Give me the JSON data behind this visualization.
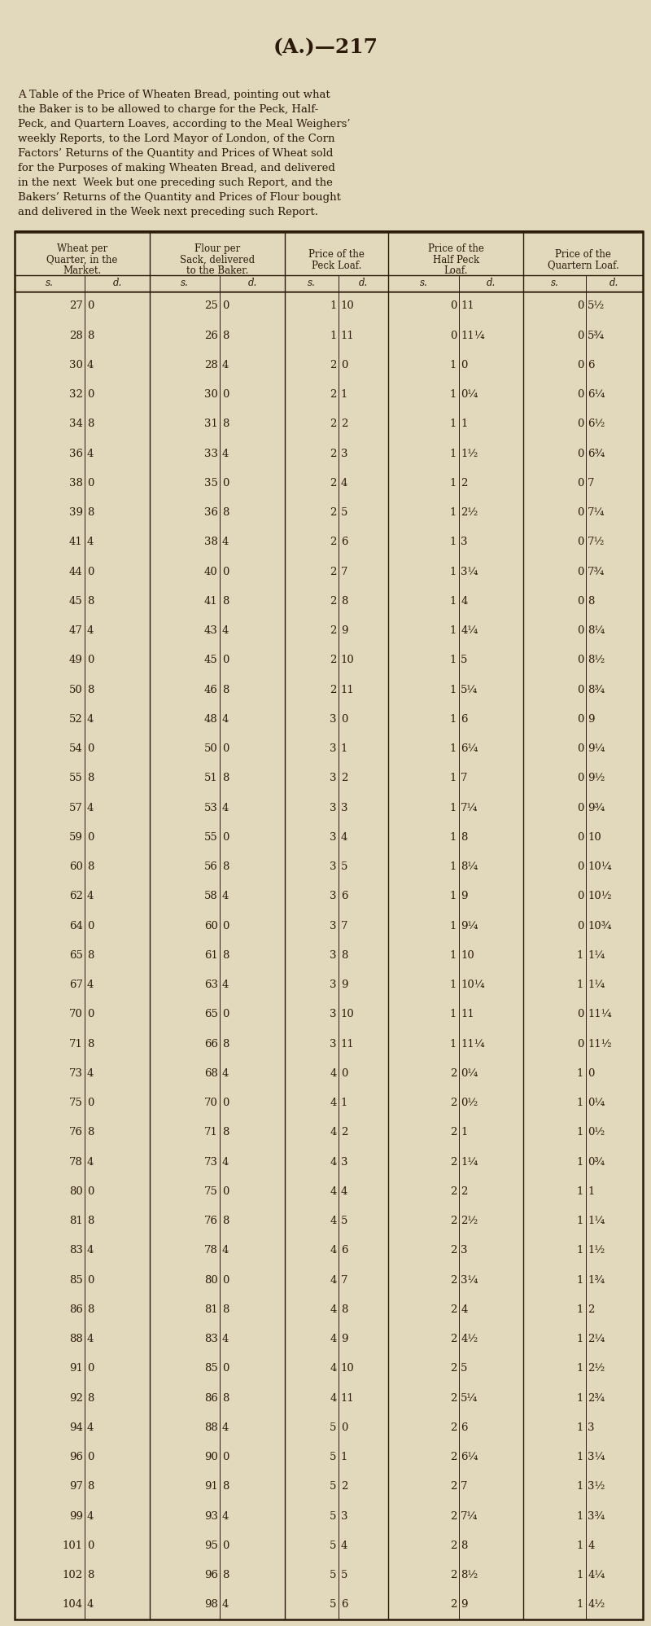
{
  "title": "(A.)—217",
  "subtitle_lines": [
    "A Table of the Price of Wheaten Bread, pointing out what",
    "the Baker is to be allowed to charge for the Peck, Half-",
    "Peck, and Quartern Loaves, according to the Meal Weighers’",
    "weekly Reports, to the Lord Mayor of London, of the Corn",
    "Factors’ Returns of the Quantity and Prices of Wheat sold",
    "for the Purposes of making Wheaten Bread, and delivered",
    "in the next  Week but one preceding such Report, and the",
    "Bakers’ Returns of the Quantity and Prices of Flour bought",
    "and delivered in the Week next preceding such Report."
  ],
  "col_headers": [
    [
      "Wheat per",
      "Quarter, in the",
      "Market."
    ],
    [
      "Flour per",
      "Sack, delivered",
      "to the Baker."
    ],
    [
      "Price of the",
      "Peck Loaf."
    ],
    [
      "Price of the",
      "Half Peck",
      "Loaf."
    ],
    [
      "Price of the",
      "Quartern Loaf."
    ]
  ],
  "rows": [
    [
      "27",
      "0",
      "25",
      "0",
      "1",
      "10",
      "0",
      "11",
      "0",
      "5½"
    ],
    [
      "28",
      "8",
      "26",
      "8",
      "1",
      "11",
      "0",
      "11¼",
      "0",
      "5¾"
    ],
    [
      "30",
      "4",
      "28",
      "4",
      "2",
      "0",
      "1",
      "0",
      "0",
      "6"
    ],
    [
      "32",
      "0",
      "30",
      "0",
      "2",
      "1",
      "1",
      "0¼",
      "0",
      "6¼"
    ],
    [
      "34",
      "8",
      "31",
      "8",
      "2",
      "2",
      "1",
      "1",
      "0",
      "6½"
    ],
    [
      "36",
      "4",
      "33",
      "4",
      "2",
      "3",
      "1",
      "1½",
      "0",
      "6¾"
    ],
    [
      "38",
      "0",
      "35",
      "0",
      "2",
      "4",
      "1",
      "2",
      "0",
      "7"
    ],
    [
      "39",
      "8",
      "36",
      "8",
      "2",
      "5",
      "1",
      "2½",
      "0",
      "7¼"
    ],
    [
      "41",
      "4",
      "38",
      "4",
      "2",
      "6",
      "1",
      "3",
      "0",
      "7½"
    ],
    [
      "44",
      "0",
      "40",
      "0",
      "2",
      "7",
      "1",
      "3¼",
      "0",
      "7¾"
    ],
    [
      "45",
      "8",
      "41",
      "8",
      "2",
      "8",
      "1",
      "4",
      "0",
      "8"
    ],
    [
      "47",
      "4",
      "43",
      "4",
      "2",
      "9",
      "1",
      "4¼",
      "0",
      "8¼"
    ],
    [
      "49",
      "0",
      "45",
      "0",
      "2",
      "10",
      "1",
      "5",
      "0",
      "8½"
    ],
    [
      "50",
      "8",
      "46",
      "8",
      "2",
      "11",
      "1",
      "5¼",
      "0",
      "8¾"
    ],
    [
      "52",
      "4",
      "48",
      "4",
      "3",
      "0",
      "1",
      "6",
      "0",
      "9"
    ],
    [
      "54",
      "0",
      "50",
      "0",
      "3",
      "1",
      "1",
      "6¼",
      "0",
      "9¼"
    ],
    [
      "55",
      "8",
      "51",
      "8",
      "3",
      "2",
      "1",
      "7",
      "0",
      "9½"
    ],
    [
      "57",
      "4",
      "53",
      "4",
      "3",
      "3",
      "1",
      "7¼",
      "0",
      "9¾"
    ],
    [
      "59",
      "0",
      "55",
      "0",
      "3",
      "4",
      "1",
      "8",
      "0",
      "10"
    ],
    [
      "60",
      "8",
      "56",
      "8",
      "3",
      "5",
      "1",
      "8¼",
      "0",
      "10¼"
    ],
    [
      "62",
      "4",
      "58",
      "4",
      "3",
      "6",
      "1",
      "9",
      "0",
      "10½"
    ],
    [
      "64",
      "0",
      "60",
      "0",
      "3",
      "7",
      "1",
      "9¼",
      "0",
      "10¾"
    ],
    [
      "65",
      "8",
      "61",
      "8",
      "3",
      "8",
      "1",
      "10",
      "1",
      "1¼"
    ],
    [
      "67",
      "4",
      "63",
      "4",
      "3",
      "9",
      "1",
      "10¼",
      "1",
      "1¼"
    ],
    [
      "70",
      "0",
      "65",
      "0",
      "3",
      "10",
      "1",
      "11",
      "0",
      "11¼"
    ],
    [
      "71",
      "8",
      "66",
      "8",
      "3",
      "11",
      "1",
      "11¼",
      "0",
      "11½"
    ],
    [
      "73",
      "4",
      "68",
      "4",
      "4",
      "0",
      "2",
      "0¼",
      "1",
      "0"
    ],
    [
      "75",
      "0",
      "70",
      "0",
      "4",
      "1",
      "2",
      "0½",
      "1",
      "0¼"
    ],
    [
      "76",
      "8",
      "71",
      "8",
      "4",
      "2",
      "2",
      "1",
      "1",
      "0½"
    ],
    [
      "78",
      "4",
      "73",
      "4",
      "4",
      "3",
      "2",
      "1¼",
      "1",
      "0¾"
    ],
    [
      "80",
      "0",
      "75",
      "0",
      "4",
      "4",
      "2",
      "2",
      "1",
      "1"
    ],
    [
      "81",
      "8",
      "76",
      "8",
      "4",
      "5",
      "2",
      "2½",
      "1",
      "1¼"
    ],
    [
      "83",
      "4",
      "78",
      "4",
      "4",
      "6",
      "2",
      "3",
      "1",
      "1½"
    ],
    [
      "85",
      "0",
      "80",
      "0",
      "4",
      "7",
      "2",
      "3¼",
      "1",
      "1¾"
    ],
    [
      "86",
      "8",
      "81",
      "8",
      "4",
      "8",
      "2",
      "4",
      "1",
      "2"
    ],
    [
      "88",
      "4",
      "83",
      "4",
      "4",
      "9",
      "2",
      "4½",
      "1",
      "2¼"
    ],
    [
      "91",
      "0",
      "85",
      "0",
      "4",
      "10",
      "2",
      "5",
      "1",
      "2½"
    ],
    [
      "92",
      "8",
      "86",
      "8",
      "4",
      "11",
      "2",
      "5¼",
      "1",
      "2¾"
    ],
    [
      "94",
      "4",
      "88",
      "4",
      "5",
      "0",
      "2",
      "6",
      "1",
      "3"
    ],
    [
      "96",
      "0",
      "90",
      "0",
      "5",
      "1",
      "2",
      "6¼",
      "1",
      "3¼"
    ],
    [
      "97",
      "8",
      "91",
      "8",
      "5",
      "2",
      "2",
      "7",
      "1",
      "3½"
    ],
    [
      "99",
      "4",
      "93",
      "4",
      "5",
      "3",
      "2",
      "7¼",
      "1",
      "3¾"
    ],
    [
      "101",
      "0",
      "95",
      "0",
      "5",
      "4",
      "2",
      "8",
      "1",
      "4"
    ],
    [
      "102",
      "8",
      "96",
      "8",
      "5",
      "5",
      "2",
      "8½",
      "1",
      "4¼"
    ],
    [
      "104",
      "4",
      "98",
      "4",
      "5",
      "6",
      "2",
      "9",
      "1",
      "4½"
    ]
  ],
  "bg_color": "#e2d9bc",
  "text_color": "#2b1a0a",
  "border_color": "#2b1a0a"
}
